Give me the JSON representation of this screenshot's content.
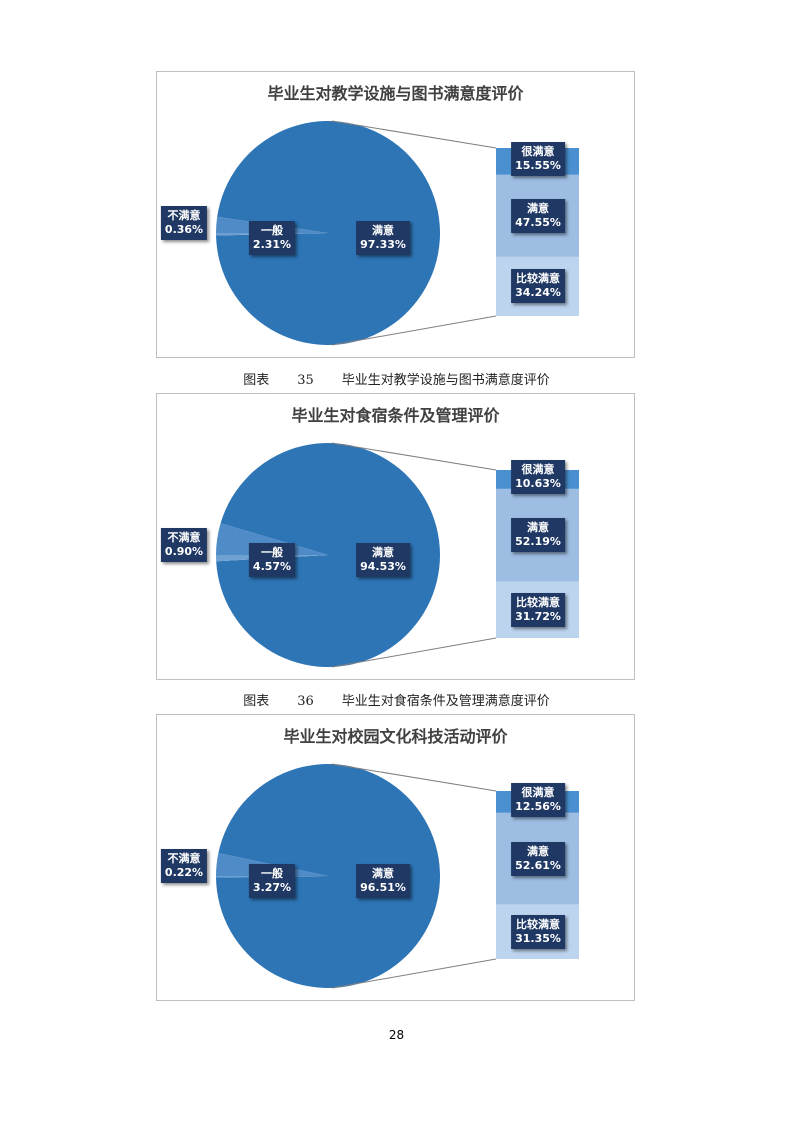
{
  "colors": {
    "main": "#2e75b6",
    "general": "#4f8bc6",
    "unsatisfied": "#6fa0d2",
    "very": "#4a90d0",
    "sat": "#9dbde2",
    "rather": "#bdd4ee",
    "label_bg": "#1f3864"
  },
  "chart_data": [
    {
      "type": "pie",
      "subtype": "pie-of-bar",
      "title": "毕业生对教学设施与图书满意度评价",
      "pie": [
        {
          "name": "满意",
          "value": 97.33,
          "label": "97.33%"
        },
        {
          "name": "一般",
          "value": 2.31,
          "label": "2.31%"
        },
        {
          "name": "不满意",
          "value": 0.36,
          "label": "0.36%"
        }
      ],
      "bar": [
        {
          "name": "很满意",
          "value": 15.55,
          "label": "15.55%"
        },
        {
          "name": "满意",
          "value": 47.55,
          "label": "47.55%"
        },
        {
          "name": "比较满意",
          "value": 34.24,
          "label": "34.24%"
        }
      ]
    },
    {
      "type": "pie",
      "subtype": "pie-of-bar",
      "title": "毕业生对食宿条件及管理评价",
      "pie": [
        {
          "name": "满意",
          "value": 94.53,
          "label": "94.53%"
        },
        {
          "name": "一般",
          "value": 4.57,
          "label": "4.57%"
        },
        {
          "name": "不满意",
          "value": 0.9,
          "label": "0.90%"
        }
      ],
      "bar": [
        {
          "name": "很满意",
          "value": 10.63,
          "label": "10.63%"
        },
        {
          "name": "满意",
          "value": 52.19,
          "label": "52.19%"
        },
        {
          "name": "比较满意",
          "value": 31.72,
          "label": "31.72%"
        }
      ]
    },
    {
      "type": "pie",
      "subtype": "pie-of-bar",
      "title": "毕业生对校园文化科技活动评价",
      "pie": [
        {
          "name": "满意",
          "value": 96.51,
          "label": "96.51%"
        },
        {
          "name": "一般",
          "value": 3.27,
          "label": "3.27%"
        },
        {
          "name": "不满意",
          "value": 0.22,
          "label": "0.22%"
        }
      ],
      "bar": [
        {
          "name": "很满意",
          "value": 12.56,
          "label": "12.56%"
        },
        {
          "name": "满意",
          "value": 52.61,
          "label": "52.61%"
        },
        {
          "name": "比较满意",
          "value": 31.35,
          "label": "31.35%"
        }
      ]
    }
  ],
  "captions": [
    {
      "label": "图表",
      "number": "35",
      "text": "毕业生对教学设施与图书满意度评价"
    },
    {
      "label": "图表",
      "number": "36",
      "text": "毕业生对食宿条件及管理满意度评价"
    }
  ],
  "page_number": "28"
}
